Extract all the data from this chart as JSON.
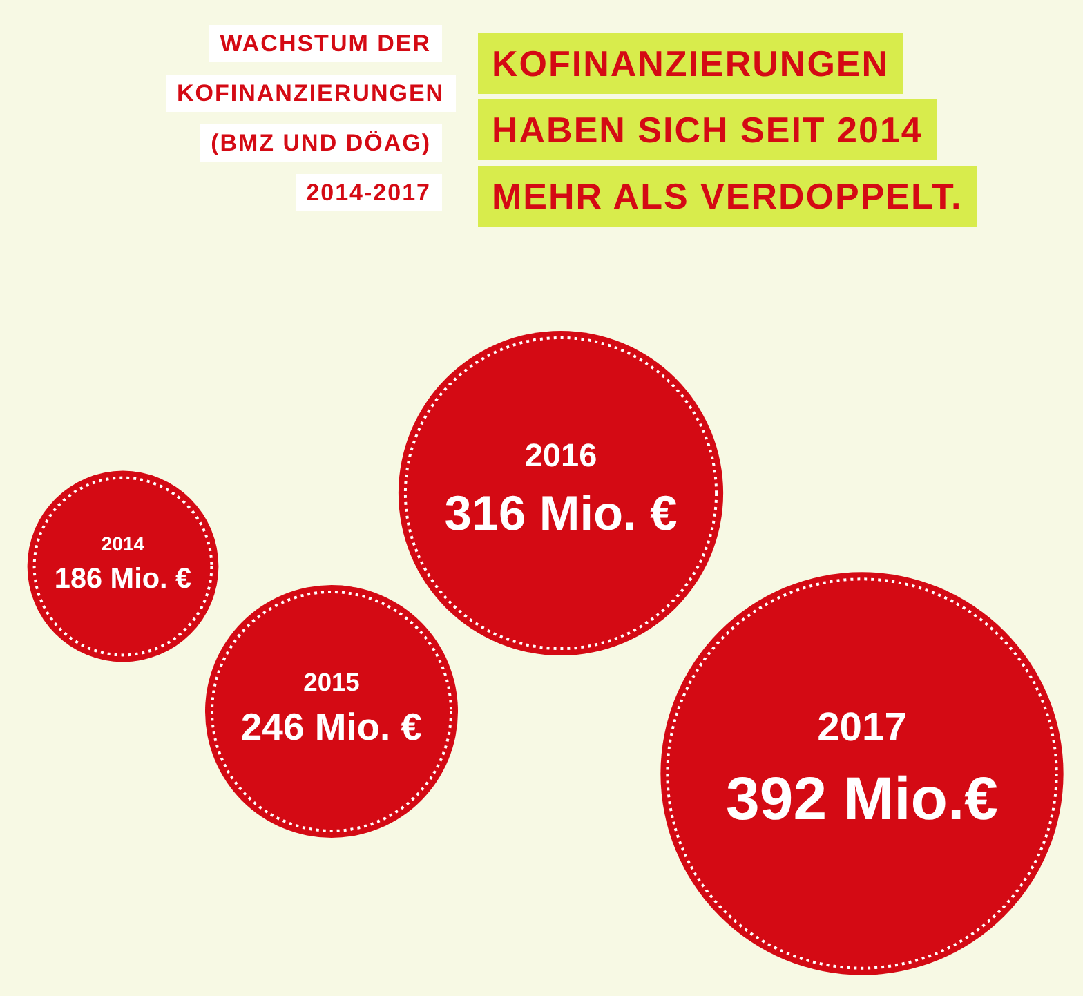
{
  "chart_data": {
    "type": "other",
    "title": "WACHSTUM DER KOFINANZIERUNGEN (BMZ UND DÖAG) 2014-2017",
    "subtitle": "KOFINANZIERUNGEN HABEN SICH SEIT 2014 MEHR ALS VERDOPPELT.",
    "categories": [
      "2014",
      "2015",
      "2016",
      "2017"
    ],
    "values": [
      186,
      246,
      316,
      392
    ],
    "value_labels": [
      "186 Mio. €",
      "246 Mio. €",
      "316 Mio. €",
      "392 Mio.€"
    ],
    "color": "#d40a14"
  }
}
